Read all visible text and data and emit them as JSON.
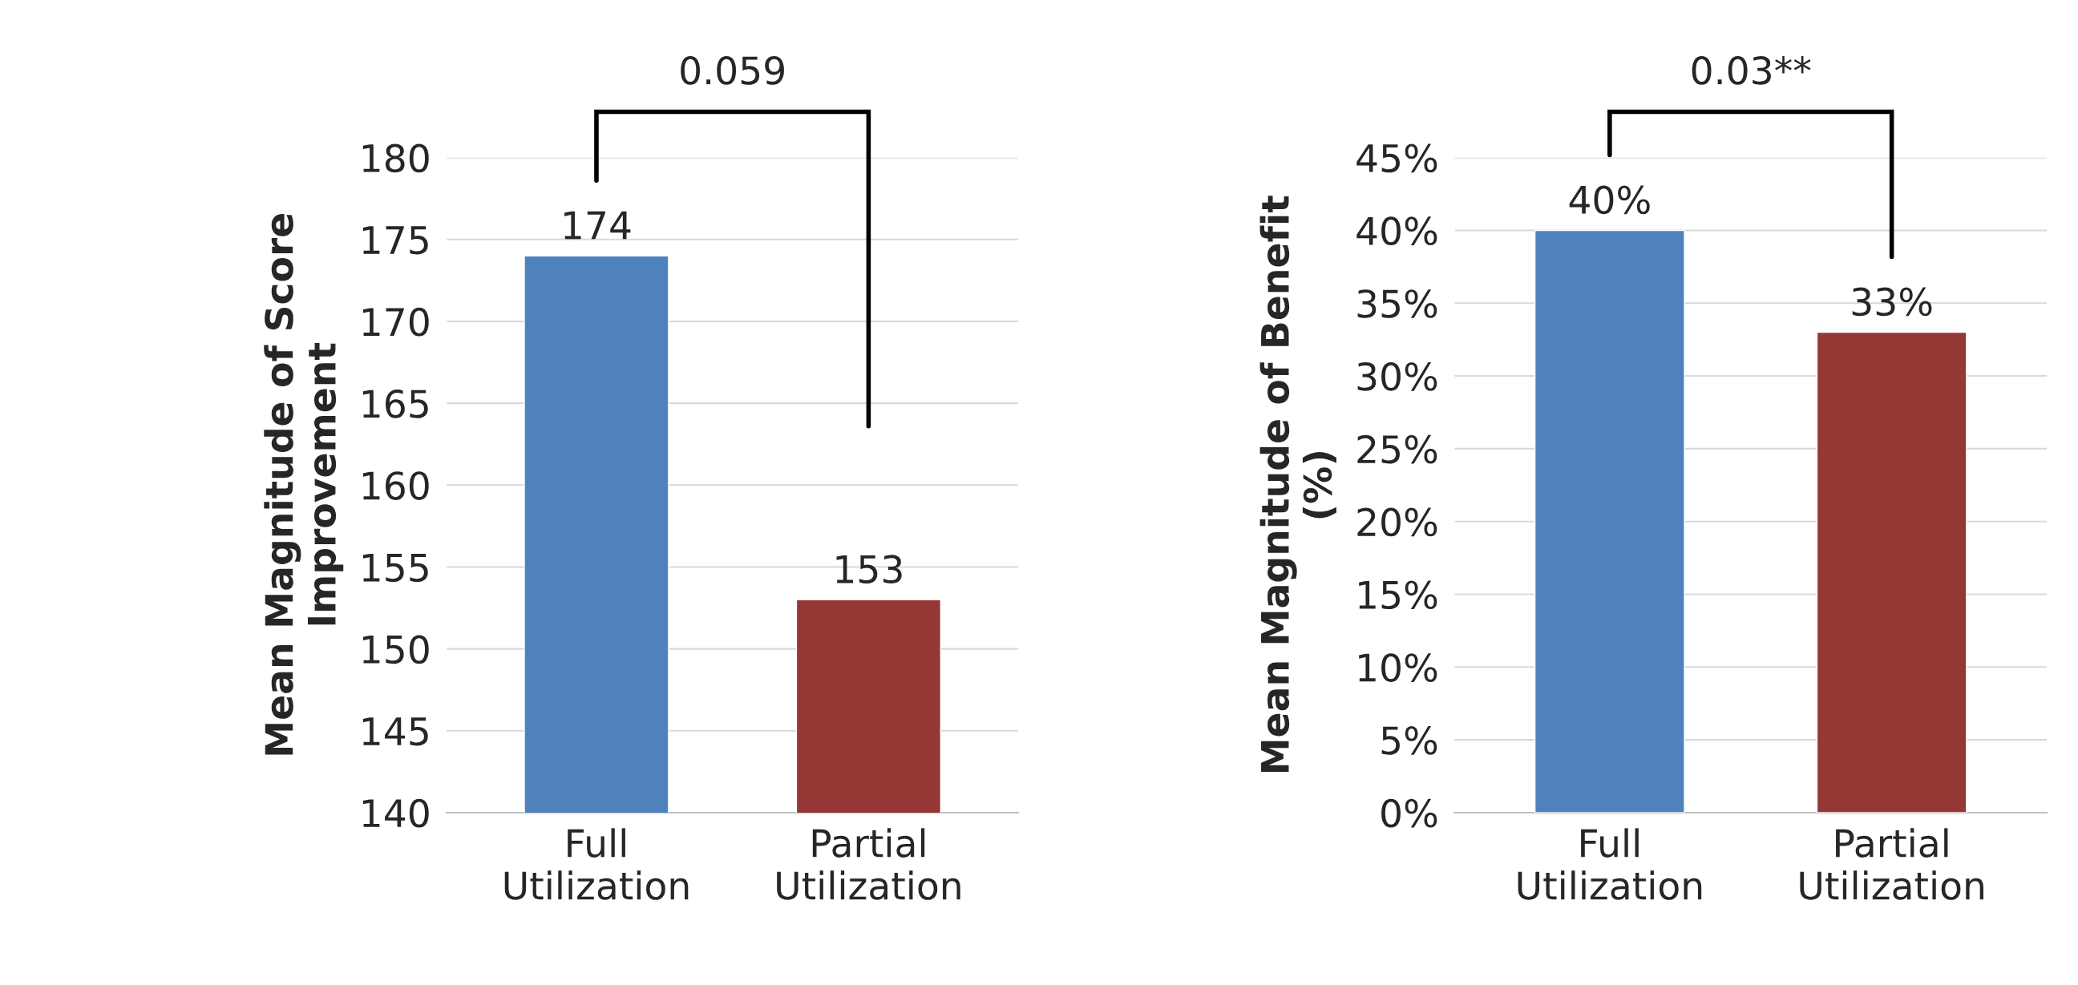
{
  "chart_data": [
    {
      "type": "bar",
      "ylabel": "Mean Magnitude of Score\nImprovement",
      "categories": [
        "Full\nUtilization",
        "Partial\nUtilization"
      ],
      "values": [
        174,
        153
      ],
      "colors": [
        "#4f81bd",
        "#953735"
      ],
      "ylim": [
        140,
        180
      ],
      "yticks": [
        140,
        145,
        150,
        155,
        160,
        165,
        170,
        175,
        180
      ],
      "grid": "y",
      "data_labels": true,
      "annotations": [
        "0.059"
      ]
    },
    {
      "type": "bar",
      "ylabel": "Mean Magnitude of Benefit\n(%)",
      "categories": [
        "Full\nUtilization",
        "Partial\nUtilization"
      ],
      "values": [
        40,
        33
      ],
      "colors": [
        "#4f81bd",
        "#953735"
      ],
      "ylim": [
        0,
        45
      ],
      "yticks": [
        {
          "value": 0,
          "label": "0%"
        },
        {
          "value": 5,
          "label": "5%"
        },
        {
          "value": 10,
          "label": "10%"
        },
        {
          "value": 15,
          "label": "15%"
        },
        {
          "value": 20,
          "label": "20%"
        },
        {
          "value": 25,
          "label": "25%"
        },
        {
          "value": 30,
          "label": "30%"
        },
        {
          "value": 35,
          "label": "35%"
        },
        {
          "value": 40,
          "label": "40%"
        },
        {
          "value": 45,
          "label": "45%"
        }
      ],
      "grid": "y",
      "value_labels": [
        "40%",
        "33%"
      ],
      "annotations": [
        "0.03**"
      ]
    }
  ]
}
